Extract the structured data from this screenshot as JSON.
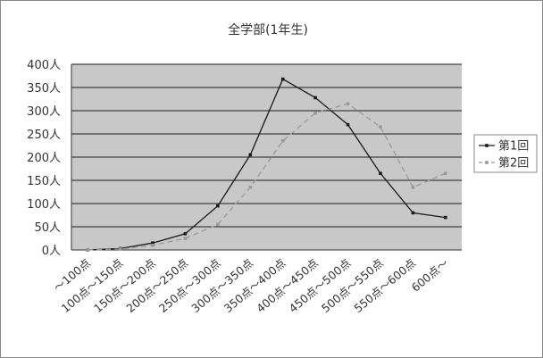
{
  "chart_data": {
    "type": "line",
    "title": "全学部(1年生)",
    "xlabel": "",
    "ylabel": "",
    "categories": [
      "～100点",
      "100点～150点",
      "150点～200点",
      "200点～250点",
      "250点～300点",
      "300点～350点",
      "350点～400点",
      "400点～450点",
      "450点～500点",
      "500点～550点",
      "550点～600点",
      "600点～"
    ],
    "y_ticks": [
      "0人",
      "50人",
      "100人",
      "150人",
      "200人",
      "250人",
      "300人",
      "350人",
      "400人"
    ],
    "ylim": [
      0,
      400
    ],
    "grid": true,
    "legend_position": "right",
    "series": [
      {
        "name": "第1回",
        "color": "#1a1a1a",
        "dash": "solid",
        "values": [
          0,
          3,
          15,
          35,
          95,
          205,
          368,
          328,
          270,
          165,
          80,
          70
        ]
      },
      {
        "name": "第2回",
        "color": "#9a9a9a",
        "dash": "dashed",
        "values": [
          0,
          2,
          10,
          25,
          55,
          135,
          235,
          295,
          315,
          265,
          135,
          165
        ]
      }
    ],
    "colors": {
      "plot_background": "#c8c8c8",
      "gridline": "#1e1e1e",
      "axis": "#333333"
    }
  }
}
